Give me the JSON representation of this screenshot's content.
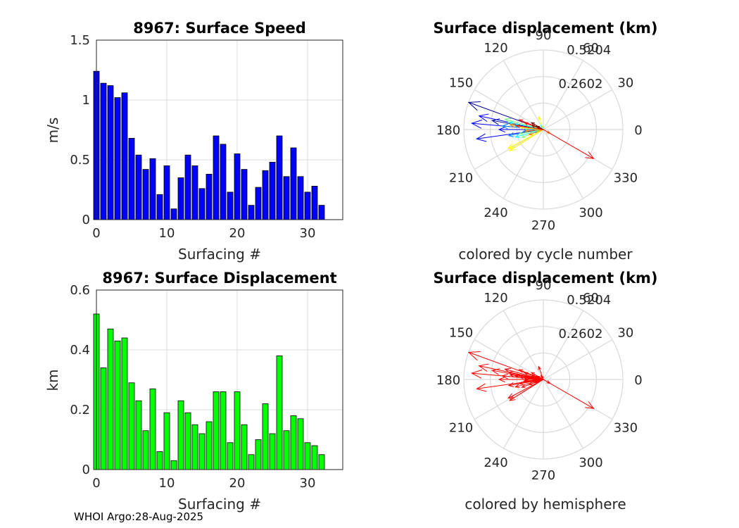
{
  "footer": "WHOI Argo:28-Aug-2025",
  "chart_data": [
    {
      "type": "bar",
      "title": "8967: Surface Speed",
      "xlabel": "Surfacing #",
      "ylabel": "m/s",
      "xlim": [
        0,
        35
      ],
      "ylim": [
        0,
        1.5
      ],
      "xticks": [
        "0",
        "10",
        "20",
        "30"
      ],
      "yticks": [
        "0",
        "0.5",
        "1",
        "1.5"
      ],
      "color": "#0000ff",
      "x": [
        0,
        1,
        2,
        3,
        4,
        5,
        6,
        7,
        8,
        9,
        10,
        11,
        12,
        13,
        14,
        15,
        16,
        17,
        18,
        19,
        20,
        21,
        22,
        23,
        24,
        25,
        26,
        27,
        28,
        29,
        30,
        31,
        32
      ],
      "values": [
        1.24,
        1.14,
        1.12,
        1.02,
        1.06,
        0.68,
        0.54,
        0.42,
        0.51,
        0.21,
        0.45,
        0.09,
        0.35,
        0.54,
        0.45,
        0.26,
        0.38,
        0.7,
        0.63,
        0.23,
        0.55,
        0.42,
        0.12,
        0.27,
        0.41,
        0.48,
        0.7,
        0.36,
        0.6,
        0.36,
        0.23,
        0.28,
        0.12
      ]
    },
    {
      "type": "polar-vector",
      "title": "Surface displacement (km)",
      "caption": "colored by cycle number",
      "radial_ticks": [
        "0.2602",
        "0.5204"
      ],
      "rmax": 0.5204,
      "angle_ticks": [
        "0",
        "30",
        "60",
        "90",
        "120",
        "150",
        "180",
        "210",
        "240",
        "270",
        "300",
        "330"
      ],
      "color_mode": "cycle",
      "colormap": [
        "#00008f",
        "#0000ff",
        "#0080ff",
        "#00ffff",
        "#80ff80",
        "#ffff00",
        "#ff8000",
        "#ff0000",
        "#800000"
      ],
      "vectors": [
        {
          "cycle": 0,
          "angle_deg": 160,
          "r": 0.52
        },
        {
          "cycle": 1,
          "angle_deg": 170,
          "r": 0.34
        },
        {
          "cycle": 2,
          "angle_deg": 175,
          "r": 0.47
        },
        {
          "cycle": 3,
          "angle_deg": 168,
          "r": 0.43
        },
        {
          "cycle": 4,
          "angle_deg": 188,
          "r": 0.44
        },
        {
          "cycle": 5,
          "angle_deg": 180,
          "r": 0.29
        },
        {
          "cycle": 6,
          "angle_deg": 190,
          "r": 0.23
        },
        {
          "cycle": 7,
          "angle_deg": 185,
          "r": 0.13
        },
        {
          "cycle": 8,
          "angle_deg": 175,
          "r": 0.27
        },
        {
          "cycle": 9,
          "angle_deg": 200,
          "r": 0.06
        },
        {
          "cycle": 10,
          "angle_deg": 172,
          "r": 0.19
        },
        {
          "cycle": 11,
          "angle_deg": 120,
          "r": 0.03
        },
        {
          "cycle": 12,
          "angle_deg": 168,
          "r": 0.23
        },
        {
          "cycle": 13,
          "angle_deg": 195,
          "r": 0.19
        },
        {
          "cycle": 14,
          "angle_deg": 200,
          "r": 0.15
        },
        {
          "cycle": 15,
          "angle_deg": 178,
          "r": 0.12
        },
        {
          "cycle": 16,
          "angle_deg": 190,
          "r": 0.16
        },
        {
          "cycle": 17,
          "angle_deg": 165,
          "r": 0.26
        },
        {
          "cycle": 18,
          "angle_deg": 208,
          "r": 0.26
        },
        {
          "cycle": 19,
          "angle_deg": 110,
          "r": 0.09
        },
        {
          "cycle": 20,
          "angle_deg": 212,
          "r": 0.26
        },
        {
          "cycle": 21,
          "angle_deg": 175,
          "r": 0.15
        },
        {
          "cycle": 22,
          "angle_deg": 330,
          "r": 0.05
        },
        {
          "cycle": 23,
          "angle_deg": 200,
          "r": 0.1
        },
        {
          "cycle": 24,
          "angle_deg": 172,
          "r": 0.22
        },
        {
          "cycle": 25,
          "angle_deg": 185,
          "r": 0.12
        },
        {
          "cycle": 26,
          "angle_deg": 330,
          "r": 0.38
        },
        {
          "cycle": 27,
          "angle_deg": 160,
          "r": 0.13
        },
        {
          "cycle": 28,
          "angle_deg": 172,
          "r": 0.18
        },
        {
          "cycle": 29,
          "angle_deg": 158,
          "r": 0.17
        },
        {
          "cycle": 30,
          "angle_deg": 150,
          "r": 0.09
        },
        {
          "cycle": 31,
          "angle_deg": 160,
          "r": 0.08
        },
        {
          "cycle": 32,
          "angle_deg": 155,
          "r": 0.05
        }
      ]
    },
    {
      "type": "bar",
      "title": "8967: Surface Displacement",
      "xlabel": "Surfacing #",
      "ylabel": "km",
      "xlim": [
        0,
        35
      ],
      "ylim": [
        0,
        0.6
      ],
      "xticks": [
        "0",
        "10",
        "20",
        "30"
      ],
      "yticks": [
        "0",
        "0.2",
        "0.4",
        "0.6"
      ],
      "color": "#00ff00",
      "x": [
        0,
        1,
        2,
        3,
        4,
        5,
        6,
        7,
        8,
        9,
        10,
        11,
        12,
        13,
        14,
        15,
        16,
        17,
        18,
        19,
        20,
        21,
        22,
        23,
        24,
        25,
        26,
        27,
        28,
        29,
        30,
        31,
        32
      ],
      "values": [
        0.52,
        0.34,
        0.47,
        0.43,
        0.44,
        0.29,
        0.23,
        0.13,
        0.27,
        0.06,
        0.19,
        0.03,
        0.23,
        0.19,
        0.15,
        0.12,
        0.16,
        0.26,
        0.26,
        0.09,
        0.26,
        0.15,
        0.05,
        0.1,
        0.22,
        0.12,
        0.38,
        0.13,
        0.18,
        0.17,
        0.09,
        0.08,
        0.05
      ]
    },
    {
      "type": "polar-vector",
      "title": "Surface displacement (km)",
      "caption": "colored by hemisphere",
      "radial_ticks": [
        "0.2602",
        "0.5204"
      ],
      "rmax": 0.5204,
      "angle_ticks": [
        "0",
        "30",
        "60",
        "90",
        "120",
        "150",
        "180",
        "210",
        "240",
        "270",
        "300",
        "330"
      ],
      "color_mode": "single",
      "color": "#ff0000",
      "vectors_same_as_panel": 1
    }
  ]
}
